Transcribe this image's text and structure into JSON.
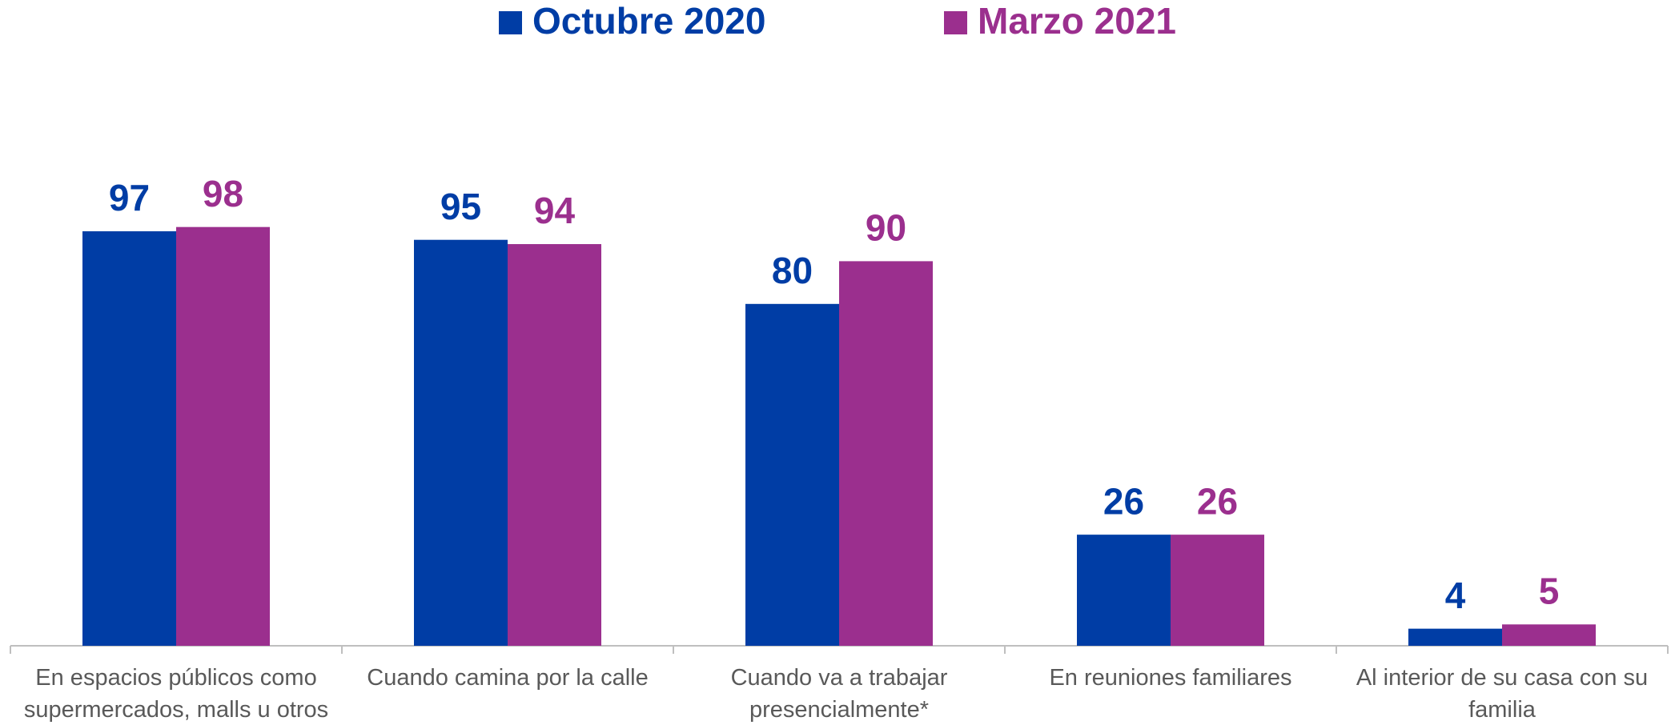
{
  "chart_data": {
    "type": "bar",
    "categories": [
      [
        "En espacios públicos como",
        "supermercados, malls u otros"
      ],
      [
        "Cuando camina por la calle"
      ],
      [
        "Cuando va a trabajar",
        "presencialmente*"
      ],
      [
        "En reuniones familiares"
      ],
      [
        "Al interior de su casa con su",
        "familia"
      ]
    ],
    "series": [
      {
        "name": "Octubre 2020",
        "color": "#003da5",
        "values": [
          97,
          95,
          80,
          26,
          4
        ]
      },
      {
        "name": "Marzo 2021",
        "color": "#9b2f8e",
        "values": [
          98,
          94,
          90,
          26,
          5
        ]
      }
    ],
    "ylim": [
      0,
      100
    ]
  }
}
